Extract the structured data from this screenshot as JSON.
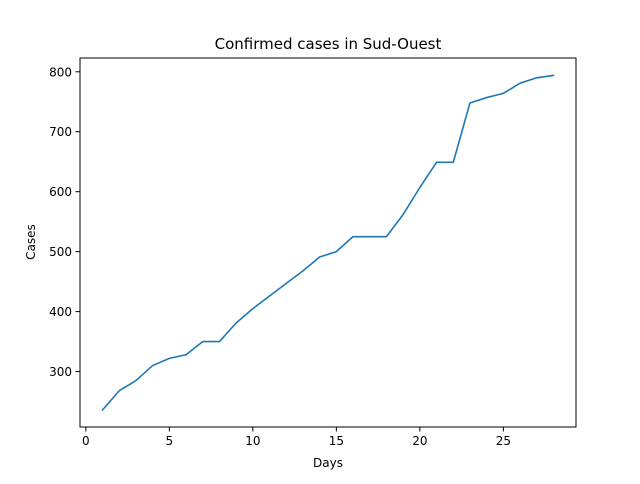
{
  "chart_data": {
    "type": "line",
    "title": "Confirmed cases in Sud-Ouest",
    "xlabel": "Days",
    "ylabel": "Cases",
    "xlim": [
      -0.35,
      29.35
    ],
    "ylim": [
      207.5,
      823
    ],
    "xticks": [
      0,
      5,
      10,
      15,
      20,
      25
    ],
    "yticks": [
      300,
      400,
      500,
      600,
      700,
      800
    ],
    "grid": false,
    "series": [
      {
        "color": "#1f77b4",
        "x": [
          1,
          2,
          3,
          4,
          5,
          6,
          7,
          8,
          9,
          10,
          11,
          12,
          13,
          14,
          15,
          16,
          17,
          18,
          19,
          20,
          21,
          22,
          23,
          24,
          25,
          26,
          27,
          28
        ],
        "y": [
          236,
          268,
          285,
          310,
          322,
          328,
          350,
          350,
          381,
          405,
          426,
          447,
          468,
          491,
          500,
          525,
          525,
          525,
          562,
          607,
          649,
          649,
          748,
          757,
          764,
          781,
          790,
          794
        ]
      }
    ]
  }
}
